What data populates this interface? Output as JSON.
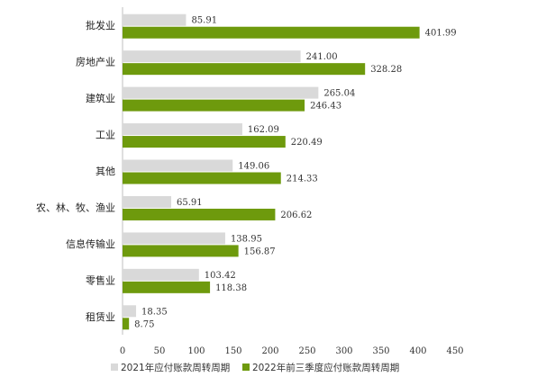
{
  "chart_data": {
    "type": "bar",
    "orientation": "horizontal",
    "categories": [
      "批发业",
      "房地产业",
      "建筑业",
      "工业",
      "其他",
      "农、林、牧、渔业",
      "信息传输业",
      "零售业",
      "租赁业"
    ],
    "series": [
      {
        "name": "2021年应付账款周转周期",
        "color": "#d9d9d9",
        "values": [
          85.91,
          241.0,
          265.04,
          162.09,
          149.06,
          65.91,
          138.95,
          103.42,
          18.35
        ],
        "labels": [
          "85.91",
          "241.00",
          "265.04",
          "162.09",
          "149.06",
          "65.91",
          "138.95",
          "103.42",
          "18.35"
        ]
      },
      {
        "name": "2022年前三季度应付账款周转周期",
        "color": "#6e9a0d",
        "values": [
          401.99,
          328.28,
          246.43,
          220.49,
          214.33,
          206.62,
          156.87,
          118.38,
          8.75
        ],
        "labels": [
          "401.99",
          "328.28",
          "246.43",
          "220.49",
          "214.33",
          "206.62",
          "156.87",
          "118.38",
          "8.75"
        ]
      }
    ],
    "xlim": [
      0,
      450
    ],
    "xticks": [
      "0",
      "50",
      "100",
      "150",
      "200",
      "250",
      "300",
      "350",
      "400",
      "450"
    ],
    "xtick_values": [
      0,
      50,
      100,
      150,
      200,
      250,
      300,
      350,
      400,
      450
    ],
    "grid": false,
    "legend_position": "bottom",
    "title": "",
    "xlabel": "",
    "ylabel": ""
  }
}
